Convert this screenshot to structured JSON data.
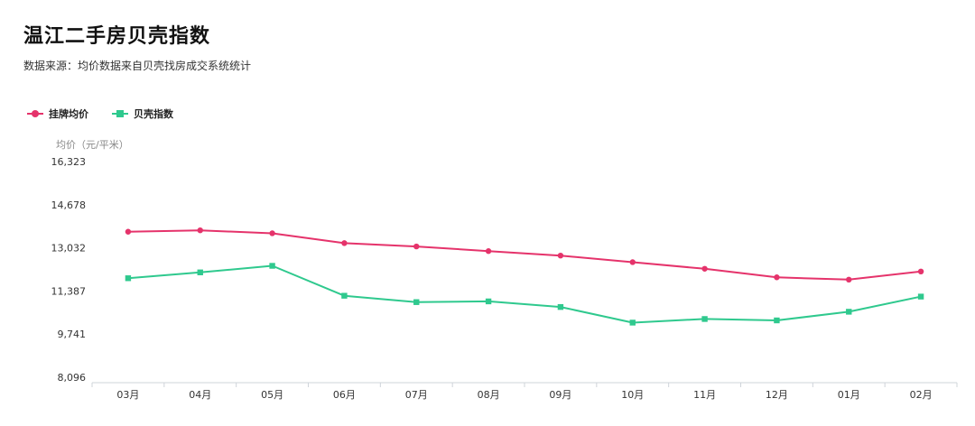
{
  "header": {
    "title": "温江二手房贝壳指数",
    "subtitle": "数据来源：均价数据来自贝壳找房成交系统统计"
  },
  "chart_data": {
    "type": "line",
    "ylabel": "均价（元/平米）",
    "xlabel": "",
    "categories": [
      "03月",
      "04月",
      "05月",
      "06月",
      "07月",
      "08月",
      "09月",
      "10月",
      "11月",
      "12月",
      "01月",
      "02月"
    ],
    "yticks": [
      "16,323",
      "14,678",
      "13,032",
      "11,387",
      "9,741",
      "8,096"
    ],
    "ylim": [
      8096,
      16323
    ],
    "grid": false,
    "legend_position": "top-left",
    "series": [
      {
        "name": "挂牌均价",
        "color": "#e5336b",
        "marker": "circle",
        "values": [
          13647,
          13700,
          13587,
          13212,
          13085,
          12908,
          12737,
          12486,
          12234,
          11908,
          11820,
          12130
        ]
      },
      {
        "name": "贝壳指数",
        "color": "#2fc98e",
        "marker": "square",
        "values": [
          11873,
          12096,
          12346,
          11205,
          10962,
          10990,
          10776,
          10180,
          10318,
          10265,
          10595,
          11173
        ]
      }
    ]
  }
}
